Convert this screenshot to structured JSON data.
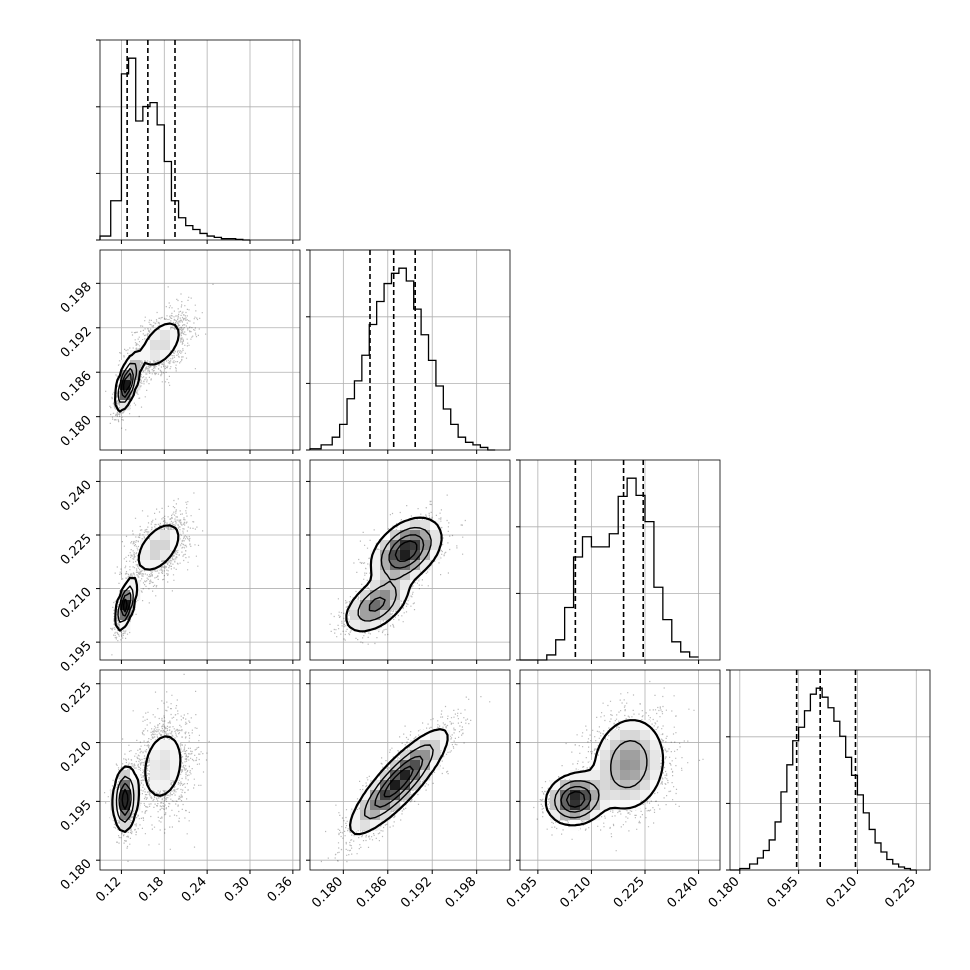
{
  "chart_data": {
    "type": "corner",
    "grid": true,
    "parameters": [
      {
        "index": 0,
        "range": [
          0.09,
          0.37
        ],
        "ticks": [
          "0.12",
          "0.18",
          "0.24",
          "0.30",
          "0.36"
        ],
        "quantiles": [
          0.128,
          0.157,
          0.195
        ]
      },
      {
        "index": 1,
        "range": [
          0.1755,
          0.2025
        ],
        "ticks": [
          "0.180",
          "0.186",
          "0.192",
          "0.198"
        ],
        "quantiles": [
          0.1836,
          0.1868,
          0.1897
        ]
      },
      {
        "index": 2,
        "range": [
          0.19,
          0.246
        ],
        "ticks": [
          "0.195",
          "0.210",
          "0.225",
          "0.240"
        ],
        "quantiles": [
          0.2055,
          0.219,
          0.2245
        ]
      },
      {
        "index": 3,
        "range": [
          0.1775,
          0.2285
        ],
        "ticks": [
          "0.180",
          "0.195",
          "0.210",
          "0.225"
        ],
        "quantiles": [
          0.1945,
          0.2005,
          0.2095
        ]
      }
    ],
    "histograms": [
      {
        "param": 0,
        "edges": [
          0.09,
          0.105,
          0.12,
          0.13,
          0.14,
          0.15,
          0.16,
          0.17,
          0.18,
          0.19,
          0.2,
          0.21,
          0.22,
          0.23,
          0.24,
          0.25,
          0.26,
          0.27,
          0.28,
          0.29,
          0.3
        ],
        "counts": [
          3,
          30,
          127,
          139,
          91,
          102,
          105,
          88,
          60,
          30,
          17,
          11,
          8,
          5,
          3,
          2,
          1,
          1,
          0.5,
          0
        ]
      },
      {
        "param": 1,
        "edges": [
          0.1755,
          0.177,
          0.1785,
          0.1795,
          0.1805,
          0.1815,
          0.1825,
          0.1835,
          0.1845,
          0.1855,
          0.1865,
          0.1875,
          0.1885,
          0.1895,
          0.1905,
          0.1915,
          0.1925,
          0.1935,
          0.1945,
          0.1955,
          0.1965,
          0.1975,
          0.1985,
          0.1995,
          0.2005
        ],
        "counts": [
          0.5,
          2,
          5,
          10,
          20,
          27,
          37,
          49,
          58,
          65,
          69,
          71,
          66,
          55,
          45,
          35,
          25,
          16,
          10,
          5,
          3,
          2,
          1,
          0
        ]
      },
      {
        "param": 2,
        "edges": [
          0.19,
          0.1975,
          0.2,
          0.2025,
          0.205,
          0.2075,
          0.21,
          0.2125,
          0.215,
          0.2175,
          0.22,
          0.2225,
          0.225,
          0.2275,
          0.23,
          0.2325,
          0.235,
          0.2375,
          0.24
        ],
        "counts": [
          0,
          5,
          20,
          52,
          102,
          122,
          112,
          112,
          125,
          162,
          180,
          163,
          137,
          72,
          40,
          18,
          8,
          3
        ]
      },
      {
        "param": 3,
        "edges": [
          0.1775,
          0.18,
          0.1825,
          0.1845,
          0.186,
          0.1875,
          0.189,
          0.1905,
          0.192,
          0.1935,
          0.195,
          0.1965,
          0.198,
          0.1995,
          0.201,
          0.2025,
          0.204,
          0.2055,
          0.207,
          0.2085,
          0.21,
          0.2115,
          0.213,
          0.2145,
          0.216,
          0.2175,
          0.219,
          0.2205,
          0.222,
          0.2235,
          0.225
        ],
        "counts": [
          0,
          1,
          4,
          8,
          13,
          20,
          32,
          52,
          70,
          86,
          95,
          106,
          117,
          121,
          115,
          108,
          99,
          89,
          75,
          63,
          50,
          38,
          27,
          18,
          12,
          7,
          4,
          2,
          1,
          0
        ]
      }
    ],
    "pairs": [
      {
        "x": 0,
        "y": 1,
        "modes": [
          {
            "c": [
              0.128,
              0.1845
            ],
            "s": [
              0.008,
              0.0018
            ],
            "r": 0.6,
            "w": 0.55
          },
          {
            "c": [
              0.175,
              0.1898
            ],
            "s": [
              0.02,
              0.0022
            ],
            "r": 0.5,
            "w": 0.45
          }
        ]
      },
      {
        "x": 0,
        "y": 2,
        "modes": [
          {
            "c": [
              0.126,
              0.2055
            ],
            "s": [
              0.007,
              0.0035
            ],
            "r": 0.6,
            "w": 0.45
          },
          {
            "c": [
              0.172,
              0.2215
            ],
            "s": [
              0.02,
              0.0045
            ],
            "r": 0.5,
            "w": 0.55
          }
        ]
      },
      {
        "x": 1,
        "y": 2,
        "modes": [
          {
            "c": [
              0.1845,
              0.2055
            ],
            "s": [
              0.0022,
              0.004
            ],
            "r": 0.5,
            "w": 0.35
          },
          {
            "c": [
              0.1885,
              0.2205
            ],
            "s": [
              0.0023,
              0.0045
            ],
            "r": 0.4,
            "w": 0.65
          }
        ]
      },
      {
        "x": 0,
        "y": 3,
        "modes": [
          {
            "c": [
              0.125,
              0.1955
            ],
            "s": [
              0.008,
              0.004
            ],
            "r": 0.1,
            "w": 0.5
          },
          {
            "c": [
              0.178,
              0.204
            ],
            "s": [
              0.021,
              0.0065
            ],
            "r": 0.2,
            "w": 0.5
          }
        ]
      },
      {
        "x": 1,
        "y": 3,
        "modes": [
          {
            "c": [
              0.1875,
              0.2
            ],
            "s": [
              0.0032,
              0.0065
            ],
            "r": 0.85,
            "w": 1.0
          }
        ]
      },
      {
        "x": 2,
        "y": 3,
        "modes": [
          {
            "c": [
              0.2055,
              0.1955
            ],
            "s": [
              0.004,
              0.0032
            ],
            "r": 0.1,
            "w": 0.4
          },
          {
            "c": [
              0.2205,
              0.2045
            ],
            "s": [
              0.0055,
              0.0065
            ],
            "r": 0.1,
            "w": 0.6
          }
        ]
      }
    ]
  }
}
